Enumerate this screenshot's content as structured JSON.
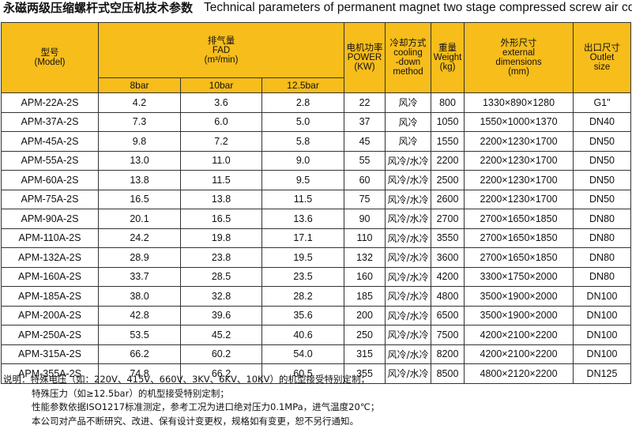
{
  "title": {
    "zh": "永磁两级压缩螺杆式空压机技术参数",
    "en": "Technical parameters of permanent magnet two stage compressed screw air compressor"
  },
  "headers": {
    "model": [
      "型号",
      "(Model)"
    ],
    "fad": [
      "排气量",
      "FAD",
      "(m³/min)"
    ],
    "power": [
      "电机功率",
      "POWER",
      "(KW)"
    ],
    "cooling": [
      "冷却方式",
      "cooling",
      "-down",
      "method"
    ],
    "weight": [
      "重量",
      "Weight",
      "(kg)"
    ],
    "dimensions": [
      "外形尺寸",
      "external",
      "dimensions",
      "(mm)"
    ],
    "outlet": [
      "出口尺寸",
      "Outlet",
      "size"
    ],
    "pressures": [
      "8bar",
      "10bar",
      "12.5bar"
    ]
  },
  "rows": [
    {
      "model": "APM-22A-2S",
      "fad": [
        "4.2",
        "3.6",
        "2.8"
      ],
      "power": "22",
      "cooling": "风冷",
      "weight": "800",
      "dimensions": "1330×890×1280",
      "outlet": "G1\""
    },
    {
      "model": "APM-37A-2S",
      "fad": [
        "7.3",
        "6.0",
        "5.0"
      ],
      "power": "37",
      "cooling": "风冷",
      "weight": "1050",
      "dimensions": "1550×1000×1370",
      "outlet": "DN40"
    },
    {
      "model": "APM-45A-2S",
      "fad": [
        "9.8",
        "7.2",
        "5.8"
      ],
      "power": "45",
      "cooling": "风冷",
      "weight": "1550",
      "dimensions": "2200×1230×1700",
      "outlet": "DN50"
    },
    {
      "model": "APM-55A-2S",
      "fad": [
        "13.0",
        "11.0",
        "9.0"
      ],
      "power": "55",
      "cooling": "风冷/水冷",
      "weight": "2200",
      "dimensions": "2200×1230×1700",
      "outlet": "DN50"
    },
    {
      "model": "APM-60A-2S",
      "fad": [
        "13.8",
        "11.5",
        "9.5"
      ],
      "power": "60",
      "cooling": "风冷/水冷",
      "weight": "2500",
      "dimensions": "2200×1230×1700",
      "outlet": "DN50"
    },
    {
      "model": "APM-75A-2S",
      "fad": [
        "16.5",
        "13.8",
        "11.5"
      ],
      "power": "75",
      "cooling": "风冷/水冷",
      "weight": "2600",
      "dimensions": "2200×1230×1700",
      "outlet": "DN50"
    },
    {
      "model": "APM-90A-2S",
      "fad": [
        "20.1",
        "16.5",
        "13.6"
      ],
      "power": "90",
      "cooling": "风冷/水冷",
      "weight": "2700",
      "dimensions": "2700×1650×1850",
      "outlet": "DN80"
    },
    {
      "model": "APM-110A-2S",
      "fad": [
        "24.2",
        "19.8",
        "17.1"
      ],
      "power": "110",
      "cooling": "风冷/水冷",
      "weight": "3550",
      "dimensions": "2700×1650×1850",
      "outlet": "DN80"
    },
    {
      "model": "APM-132A-2S",
      "fad": [
        "28.9",
        "23.8",
        "19.5"
      ],
      "power": "132",
      "cooling": "风冷/水冷",
      "weight": "3600",
      "dimensions": "2700×1650×1850",
      "outlet": "DN80"
    },
    {
      "model": "APM-160A-2S",
      "fad": [
        "33.7",
        "28.5",
        "23.5"
      ],
      "power": "160",
      "cooling": "风冷/水冷",
      "weight": "4200",
      "dimensions": "3300×1750×2000",
      "outlet": "DN80"
    },
    {
      "model": "APM-185A-2S",
      "fad": [
        "38.0",
        "32.8",
        "28.2"
      ],
      "power": "185",
      "cooling": "风冷/水冷",
      "weight": "4800",
      "dimensions": "3500×1900×2000",
      "outlet": "DN100"
    },
    {
      "model": "APM-200A-2S",
      "fad": [
        "42.8",
        "39.6",
        "35.6"
      ],
      "power": "200",
      "cooling": "风冷/水冷",
      "weight": "6500",
      "dimensions": "3500×1900×2000",
      "outlet": "DN100"
    },
    {
      "model": "APM-250A-2S",
      "fad": [
        "53.5",
        "45.2",
        "40.6"
      ],
      "power": "250",
      "cooling": "风冷/水冷",
      "weight": "7500",
      "dimensions": "4200×2100×2200",
      "outlet": "DN100"
    },
    {
      "model": "APM-315A-2S",
      "fad": [
        "66.2",
        "60.2",
        "54.0"
      ],
      "power": "315",
      "cooling": "风冷/水冷",
      "weight": "8200",
      "dimensions": "4200×2100×2200",
      "outlet": "DN100"
    },
    {
      "model": "APM-355A-2S",
      "fad": [
        "74.8",
        "66.2",
        "60.5"
      ],
      "power": "355",
      "cooling": "风冷/水冷",
      "weight": "8500",
      "dimensions": "4800×2120×2200",
      "outlet": "DN125"
    }
  ],
  "notes": [
    "说明：特殊电压（如：220V、415V、660V、3KV、6KV、10KV）的机型接受特别定制；",
    "特殊压力（如≥12.5bar）的机型接受特别定制；",
    "性能参数依据ISO1217标准测定，参考工况为进口绝对压力0.1MPa，进气温度20℃；",
    "本公司对产品不断研究、改进、保有设计变更权，规格如有变更，恕不另行通知。"
  ],
  "colors": {
    "header_bg": "#f7bd1b",
    "border": "#333333"
  }
}
